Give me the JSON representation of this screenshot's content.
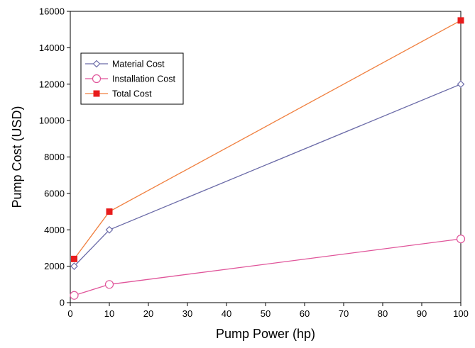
{
  "chart_data": {
    "type": "line",
    "title": "",
    "xlabel": "Pump Power (hp)",
    "ylabel": "Pump Cost (USD)",
    "xlim": [
      0,
      100
    ],
    "ylim": [
      0,
      16000
    ],
    "x_ticks": [
      0,
      10,
      20,
      30,
      40,
      50,
      60,
      70,
      80,
      90,
      100
    ],
    "y_ticks": [
      0,
      2000,
      4000,
      6000,
      8000,
      10000,
      12000,
      14000,
      16000
    ],
    "grid": false,
    "legend_placement": "upper-left",
    "x": [
      1,
      10,
      100
    ],
    "series": [
      {
        "name": "Material Cost",
        "values": [
          2000,
          4000,
          12000
        ],
        "color": "#6b6ba8",
        "marker": "diamond-open"
      },
      {
        "name": "Installation Cost",
        "values": [
          400,
          1000,
          3500
        ],
        "color": "#e0559a",
        "marker": "circle-open"
      },
      {
        "name": "Total Cost",
        "values": [
          2400,
          5000,
          15500
        ],
        "color": "#f08040",
        "marker": "square-filled",
        "marker_color": "#e81c1c"
      }
    ]
  }
}
